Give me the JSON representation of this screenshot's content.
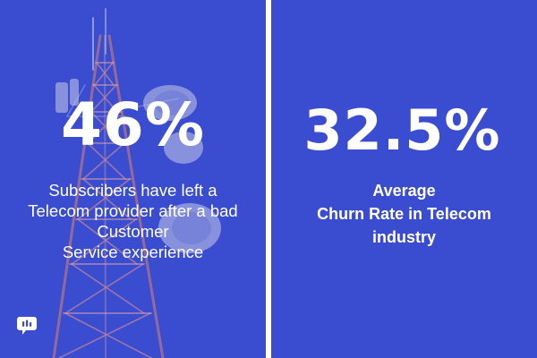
{
  "left_panel": {
    "stat": "46%",
    "caption_lines": [
      "Subscribers have left a",
      "Telecom provider after a bad",
      "Customer",
      "Service experience"
    ]
  },
  "right_panel": {
    "stat": "32.5%",
    "caption_lines": [
      "Average",
      "Churn Rate in Telecom",
      "industry"
    ]
  },
  "brand": {
    "logo_icon": "chat-bubble-icon"
  },
  "colors": {
    "panel_background": "#3a4ccf",
    "divider": "#ffffff",
    "text": "#ffffff"
  }
}
